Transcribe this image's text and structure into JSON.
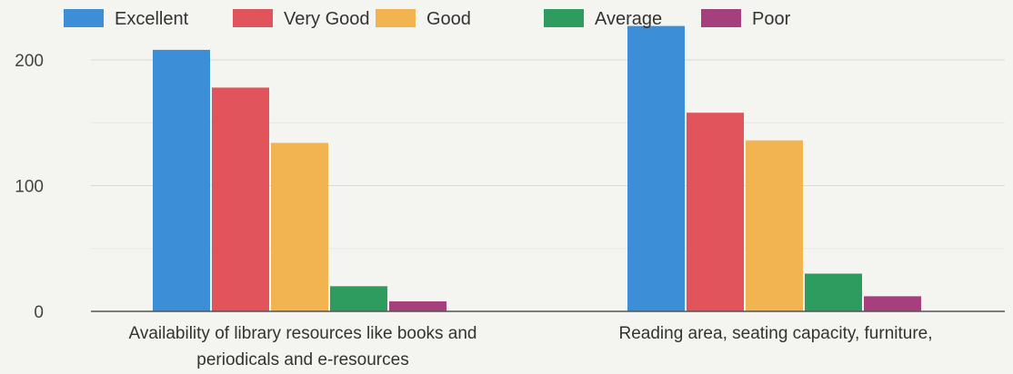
{
  "chart_data": {
    "type": "bar",
    "title": "",
    "xlabel": "",
    "ylabel": "",
    "ylim": [
      0,
      230
    ],
    "yticks": [
      0,
      100,
      200
    ],
    "grid": true,
    "legend_position": "top",
    "categories": [
      [
        "Availability of library resources like books and",
        "periodicals and e-resources"
      ],
      [
        "Reading area, seating capacity, furniture,"
      ]
    ],
    "series": [
      {
        "name": "Excellent",
        "color": "#3c8fd6",
        "values": [
          208,
          227
        ]
      },
      {
        "name": "Very Good",
        "color": "#e2545b",
        "values": [
          178,
          158
        ]
      },
      {
        "name": "Good",
        "color": "#f2b351",
        "values": [
          134,
          136
        ]
      },
      {
        "name": "Average",
        "color": "#2f9c5f",
        "values": [
          20,
          30
        ]
      },
      {
        "name": "Poor",
        "color": "#a6407c",
        "values": [
          8,
          12
        ]
      }
    ]
  }
}
